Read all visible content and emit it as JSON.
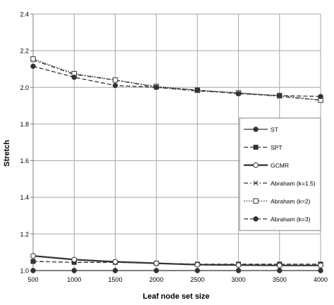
{
  "chart_data": {
    "type": "line",
    "title": "",
    "xlabel": "Leaf node set size",
    "ylabel": "Stretch",
    "x": [
      500,
      1000,
      1500,
      2000,
      2500,
      3000,
      3500,
      4000
    ],
    "xticks": [
      "500",
      "1000",
      "1500",
      "2000",
      "2500",
      "3000",
      "3500",
      "4000"
    ],
    "yticks": [
      "1.0",
      "1.2",
      "1.4",
      "1.6",
      "1.8",
      "2.0",
      "2.2",
      "2.4"
    ],
    "xlim": [
      500,
      4000
    ],
    "ylim": [
      1.0,
      2.4
    ],
    "grid": true,
    "legend_position": "right",
    "series": [
      {
        "name": "ST",
        "values": [
          1.0,
          1.0,
          1.0,
          1.0,
          1.0,
          1.0,
          1.0,
          1.0
        ],
        "line": "solid",
        "marker": "circle-filled"
      },
      {
        "name": "SPT",
        "values": [
          1.05,
          1.045,
          1.045,
          1.04,
          1.035,
          1.035,
          1.035,
          1.035
        ],
        "line": "dashed",
        "marker": "square-filled"
      },
      {
        "name": "GCMR",
        "values": [
          1.08,
          1.06,
          1.048,
          1.04,
          1.032,
          1.03,
          1.028,
          1.028
        ],
        "line": "solid-thick",
        "marker": "circle-open"
      },
      {
        "name": "Abraham (k=1.5)",
        "values": [
          2.15,
          2.07,
          2.04,
          2.0,
          1.98,
          1.97,
          1.95,
          1.93
        ],
        "line": "dash-dot",
        "marker": "x"
      },
      {
        "name": "Abraham (k=2)",
        "values": [
          2.155,
          2.075,
          2.04,
          2.005,
          1.985,
          1.97,
          1.955,
          1.93
        ],
        "line": "dotted",
        "marker": "square-open"
      },
      {
        "name": "Abraham (k=3)",
        "values": [
          2.115,
          2.055,
          2.01,
          2.0,
          1.985,
          1.965,
          1.955,
          1.95
        ],
        "line": "dashed",
        "marker": "circle-filled"
      }
    ],
    "colors": {
      "line": "#333333",
      "grid": "#a6a6a6",
      "axis": "#7f7f7f",
      "text": "#000000"
    }
  }
}
